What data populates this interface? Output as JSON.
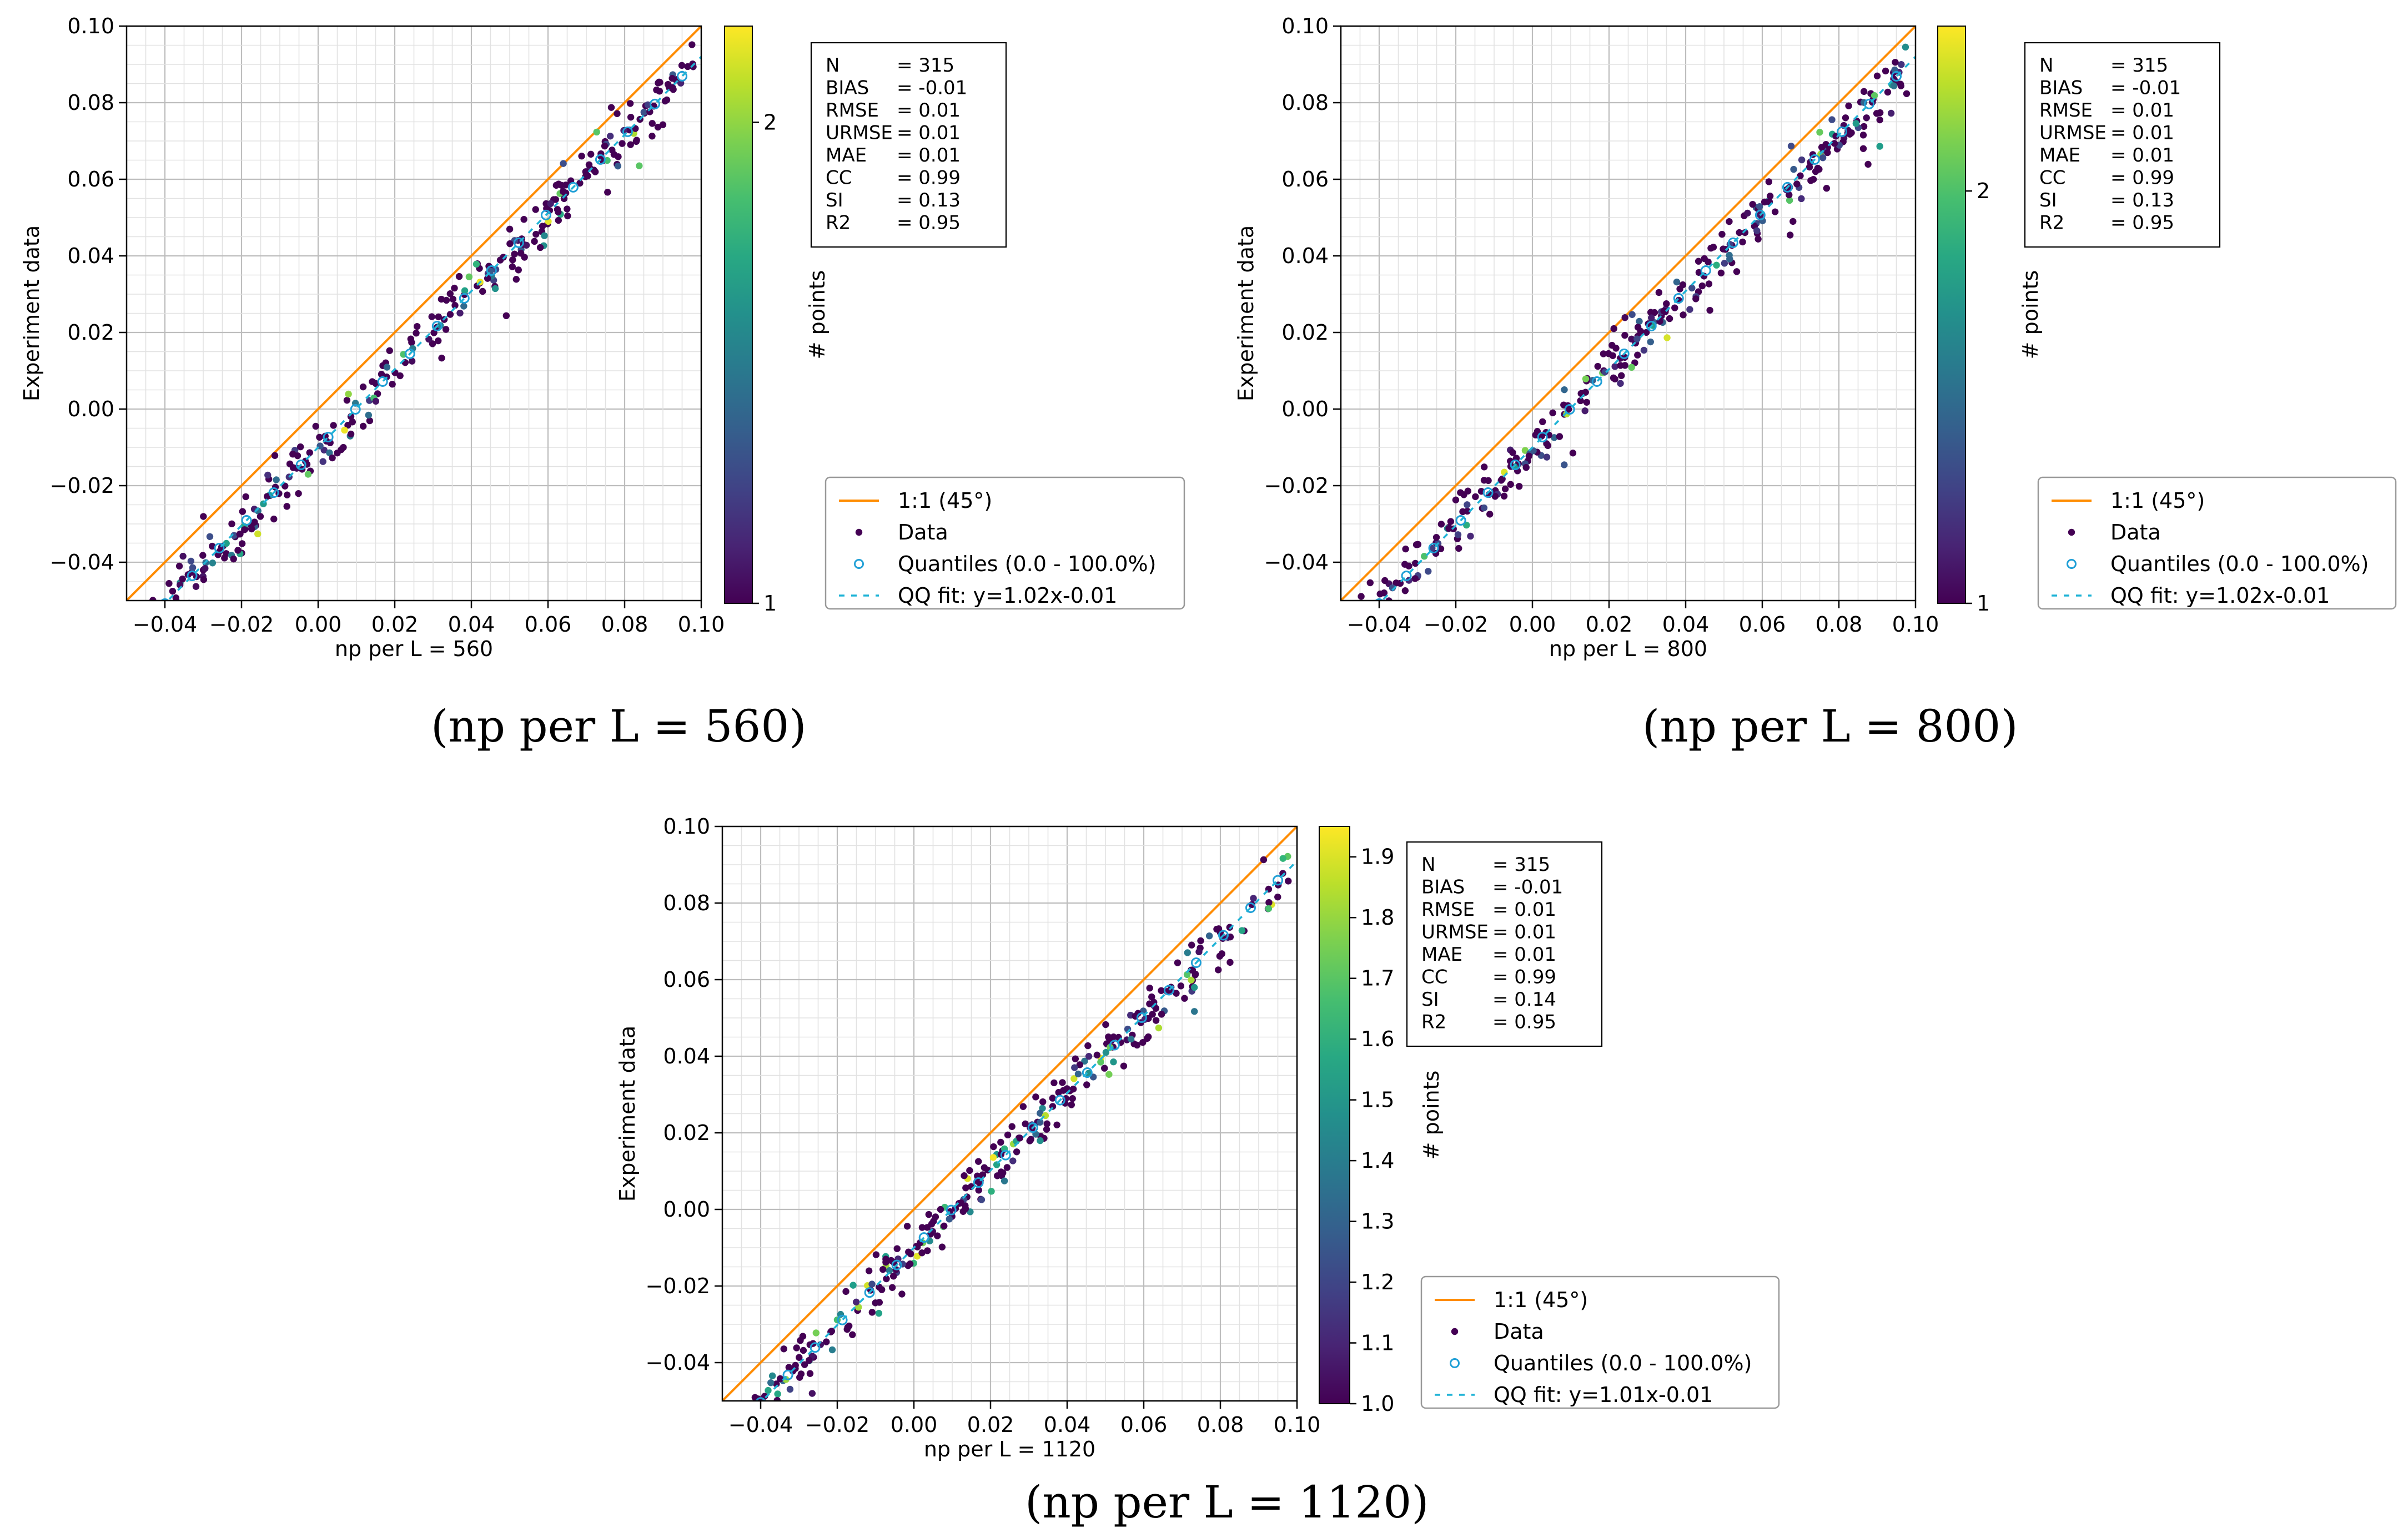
{
  "chart_data": [
    {
      "type": "scatter",
      "xlabel": "np per L = 560",
      "ylabel": "Experiment data",
      "xlim": [
        -0.05,
        0.1
      ],
      "ylim": [
        -0.05,
        0.1
      ],
      "x_ticks": [
        -0.04,
        -0.02,
        0.0,
        0.02,
        0.04,
        0.06,
        0.08,
        0.1
      ],
      "x_tick_labels": [
        "−0.04",
        "−0.02",
        "0.00",
        "0.02",
        "0.04",
        "0.06",
        "0.08",
        "0.10"
      ],
      "y_ticks": [
        -0.04,
        -0.02,
        0.0,
        0.02,
        0.04,
        0.06,
        0.08,
        0.1
      ],
      "y_tick_labels": [
        "−0.04",
        "−0.02",
        "0.00",
        "0.02",
        "0.04",
        "0.06",
        "0.08",
        "0.10"
      ],
      "grid": true,
      "caption": "(np per L = 560)",
      "colorbar": {
        "label": "# points",
        "min": 1,
        "max": 2.2,
        "ticks": [
          1,
          2
        ],
        "tick_labels": [
          "1",
          "2"
        ]
      },
      "stats": [
        {
          "name": "N",
          "value": "=  315"
        },
        {
          "name": "BIAS",
          "value": "=  -0.01"
        },
        {
          "name": "RMSE",
          "value": "=  0.01"
        },
        {
          "name": "URMSE",
          "value": "=  0.01"
        },
        {
          "name": "MAE",
          "value": "=  0.01"
        },
        {
          "name": "CC",
          "value": "=  0.99"
        },
        {
          "name": "SI",
          "value": "=  0.13"
        },
        {
          "name": "R2",
          "value": "=  0.95"
        }
      ],
      "legend": [
        "1:1 (45°)",
        "Data",
        "Quantiles (0.0 - 100.0%)",
        "QQ fit: y=1.02x-0.01"
      ],
      "qq_fit": {
        "slope": 1.02,
        "intercept": -0.01
      },
      "n_points": 315,
      "seed": 560
    },
    {
      "type": "scatter",
      "xlabel": "np per L = 800",
      "ylabel": "Experiment data",
      "xlim": [
        -0.05,
        0.1
      ],
      "ylim": [
        -0.05,
        0.1
      ],
      "x_ticks": [
        -0.04,
        -0.02,
        0.0,
        0.02,
        0.04,
        0.06,
        0.08,
        0.1
      ],
      "x_tick_labels": [
        "−0.04",
        "−0.02",
        "0.00",
        "0.02",
        "0.04",
        "0.06",
        "0.08",
        "0.10"
      ],
      "y_ticks": [
        -0.04,
        -0.02,
        0.0,
        0.02,
        0.04,
        0.06,
        0.08,
        0.1
      ],
      "y_tick_labels": [
        "−0.04",
        "−0.02",
        "0.00",
        "0.02",
        "0.04",
        "0.06",
        "0.08",
        "0.10"
      ],
      "grid": true,
      "caption": "(np per L = 800)",
      "colorbar": {
        "label": "# points",
        "min": 1,
        "max": 2.4,
        "ticks": [
          1,
          2
        ],
        "tick_labels": [
          "1",
          "2"
        ]
      },
      "stats": [
        {
          "name": "N",
          "value": "=  315"
        },
        {
          "name": "BIAS",
          "value": "=  -0.01"
        },
        {
          "name": "RMSE",
          "value": "=  0.01"
        },
        {
          "name": "URMSE",
          "value": "=  0.01"
        },
        {
          "name": "MAE",
          "value": "=  0.01"
        },
        {
          "name": "CC",
          "value": "=  0.99"
        },
        {
          "name": "SI",
          "value": "=  0.13"
        },
        {
          "name": "R2",
          "value": "=  0.95"
        }
      ],
      "legend": [
        "1:1 (45°)",
        "Data",
        "Quantiles (0.0 - 100.0%)",
        "QQ fit: y=1.02x-0.01"
      ],
      "qq_fit": {
        "slope": 1.02,
        "intercept": -0.01
      },
      "n_points": 315,
      "seed": 800
    },
    {
      "type": "scatter",
      "xlabel": "np per L = 1120",
      "ylabel": "Experiment data",
      "xlim": [
        -0.05,
        0.1
      ],
      "ylim": [
        -0.05,
        0.1
      ],
      "x_ticks": [
        -0.04,
        -0.02,
        0.0,
        0.02,
        0.04,
        0.06,
        0.08,
        0.1
      ],
      "x_tick_labels": [
        "−0.04",
        "−0.02",
        "0.00",
        "0.02",
        "0.04",
        "0.06",
        "0.08",
        "0.10"
      ],
      "y_ticks": [
        -0.04,
        -0.02,
        0.0,
        0.02,
        0.04,
        0.06,
        0.08,
        0.1
      ],
      "y_tick_labels": [
        "−0.04",
        "−0.02",
        "0.00",
        "0.02",
        "0.04",
        "0.06",
        "0.08",
        "0.10"
      ],
      "grid": true,
      "caption": "(np per L = 1120)",
      "colorbar": {
        "label": "# points",
        "min": 1.0,
        "max": 1.95,
        "ticks": [
          1.0,
          1.1,
          1.2,
          1.3,
          1.4,
          1.5,
          1.6,
          1.7,
          1.8,
          1.9
        ],
        "tick_labels": [
          "1.0",
          "1.1",
          "1.2",
          "1.3",
          "1.4",
          "1.5",
          "1.6",
          "1.7",
          "1.8",
          "1.9"
        ]
      },
      "stats": [
        {
          "name": "N",
          "value": "=  315"
        },
        {
          "name": "BIAS",
          "value": "=  -0.01"
        },
        {
          "name": "RMSE",
          "value": "=  0.01"
        },
        {
          "name": "URMSE",
          "value": "=  0.01"
        },
        {
          "name": "MAE",
          "value": "=  0.01"
        },
        {
          "name": "CC",
          "value": "=  0.99"
        },
        {
          "name": "SI",
          "value": "=  0.14"
        },
        {
          "name": "R2",
          "value": "=  0.95"
        }
      ],
      "legend": [
        "1:1 (45°)",
        "Data",
        "Quantiles (0.0 - 100.0%)",
        "QQ fit: y=1.01x-0.01"
      ],
      "qq_fit": {
        "slope": 1.01,
        "intercept": -0.01
      },
      "n_points": 315,
      "seed": 1120
    }
  ]
}
